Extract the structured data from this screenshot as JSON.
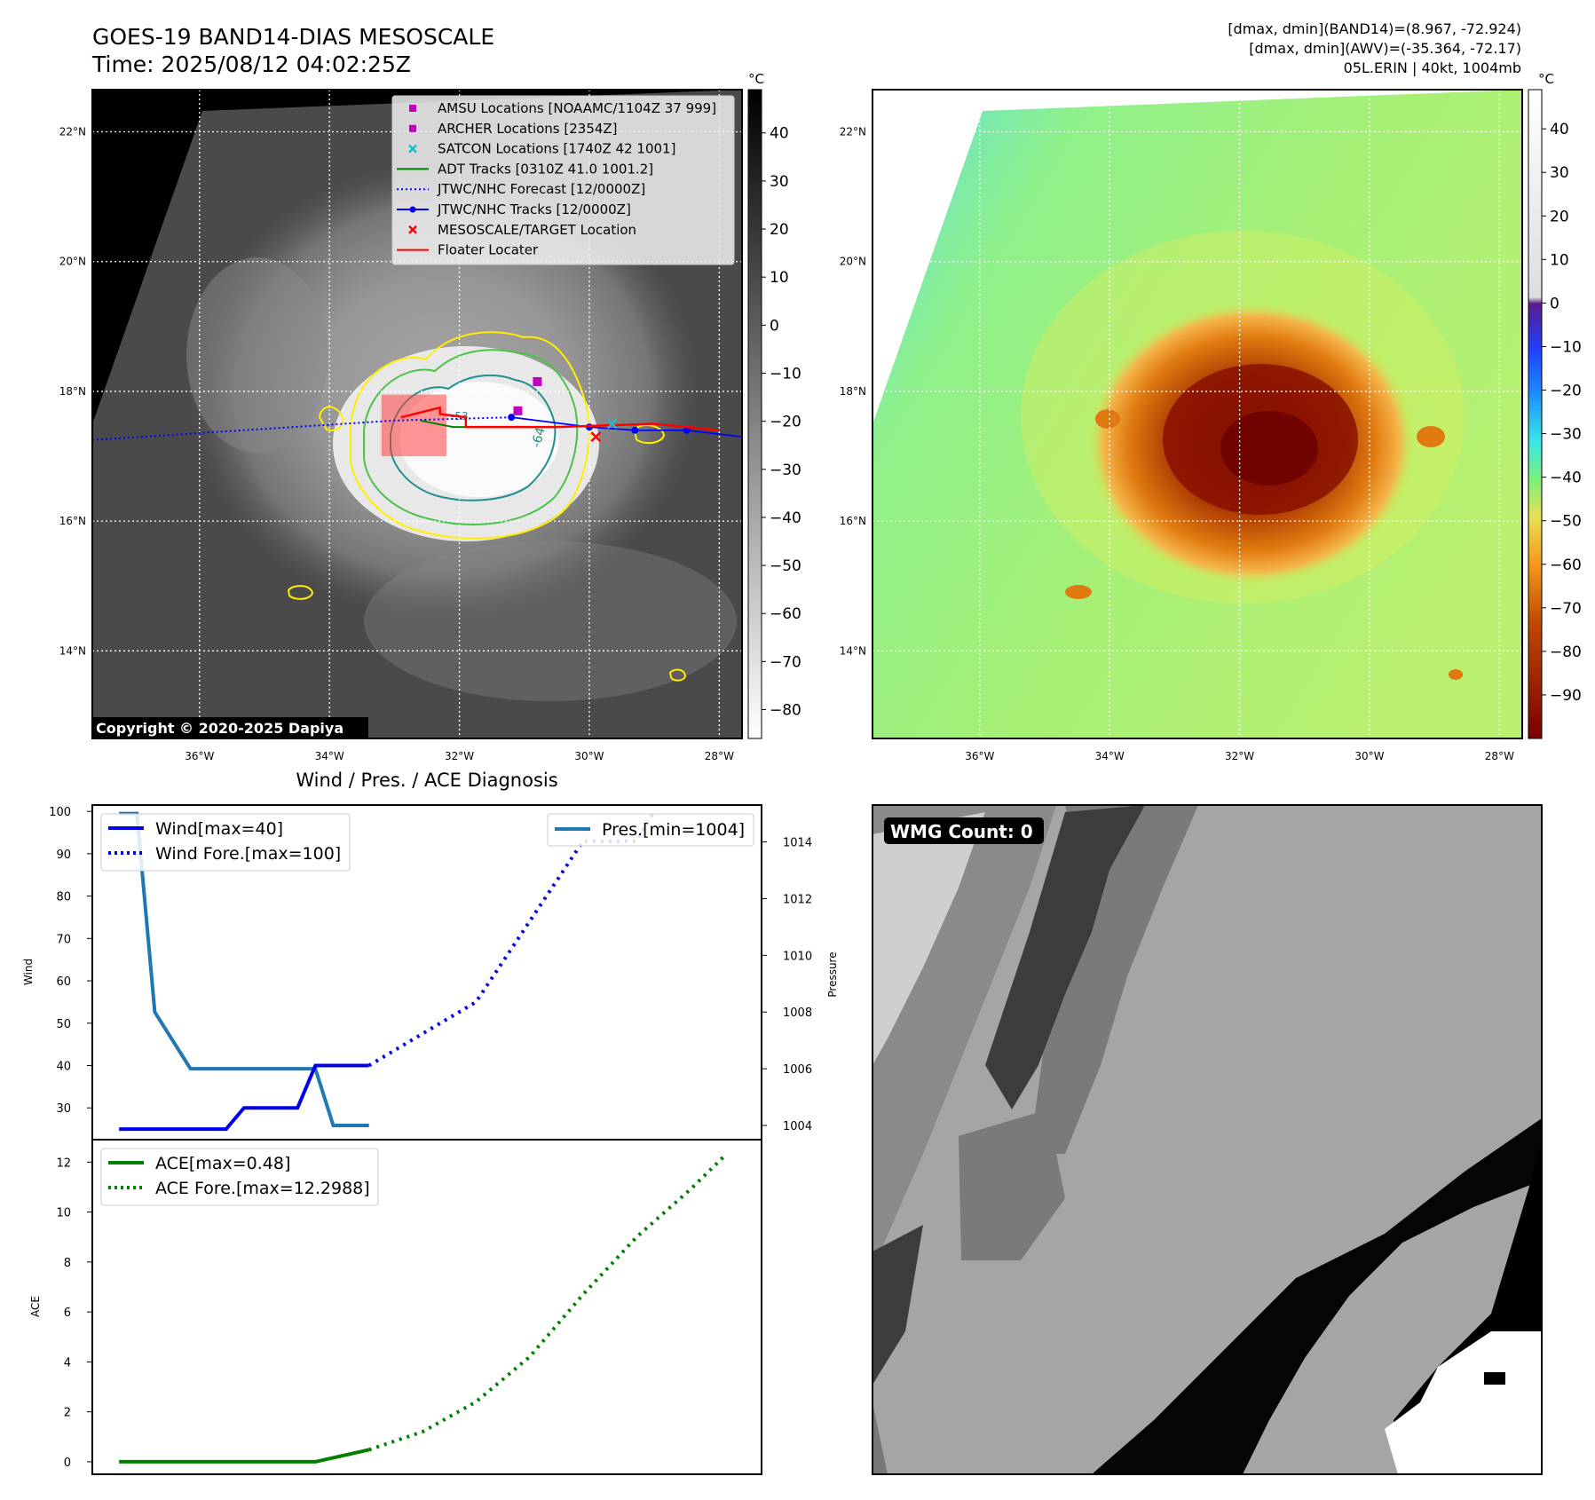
{
  "header": {
    "title_line1": "GOES-19 BAND14-DIAS MESOSCALE",
    "title_line2": "Time: 2025/08/12 04:02:25Z",
    "info_line1": "[dmax, dmin](BAND14)=(8.967, -72.924)",
    "info_line2": "[dmax, dmin](AWV)=(-35.364, -72.17)",
    "info_line3": "05L.ERIN | 40kt, 1004mb"
  },
  "map": {
    "lat_ticks": [
      "22°N",
      "20°N",
      "18°N",
      "16°N",
      "14°N"
    ],
    "lat_values": [
      22,
      20,
      18,
      16,
      14
    ],
    "lon_ticks": [
      "36°W",
      "34°W",
      "32°W",
      "30°W",
      "28°W"
    ],
    "lon_values": [
      -36,
      -34,
      -32,
      -30,
      -28
    ],
    "lon_range": [
      -37.65,
      -27.65
    ],
    "lat_range": [
      12.65,
      22.65
    ],
    "copyright": "Copyright © 2020-2025 Dapiya",
    "contour_label_1": "-64",
    "contour_label_2": "-53",
    "legend": [
      {
        "label": "AMSU Locations [NOAAMC/1104Z 37 999]",
        "color": "#bf00bf",
        "marker": "square"
      },
      {
        "label": "ARCHER Locations [2354Z]",
        "color": "#bf00bf",
        "marker": "square"
      },
      {
        "label": "SATCON Locations [1740Z 42 1001]",
        "color": "#17becf",
        "marker": "x"
      },
      {
        "label": "ADT Tracks [0310Z 41.0 1001.2]",
        "color": "#008000",
        "marker": "line"
      },
      {
        "label": "JTWC/NHC Forecast [12/0000Z]",
        "color": "#0000ff",
        "marker": "dotted"
      },
      {
        "label": "JTWC/NHC Tracks [12/0000Z]",
        "color": "#0000ff",
        "marker": "line-dot"
      },
      {
        "label": "MESOSCALE/TARGET Location",
        "color": "#ff0000",
        "marker": "x"
      },
      {
        "label": "Floater Locater",
        "color": "#ff0000",
        "marker": "line"
      }
    ]
  },
  "colorbar_gray": {
    "unit": "°C",
    "ticks": [
      "40",
      "30",
      "20",
      "10",
      "0",
      "−10",
      "−20",
      "−30",
      "−40",
      "−50",
      "−60",
      "−70",
      "−80"
    ],
    "values": [
      40,
      30,
      20,
      10,
      0,
      -10,
      -20,
      -30,
      -40,
      -50,
      -60,
      -70,
      -80
    ],
    "range": [
      -86,
      49
    ]
  },
  "colorbar_color": {
    "unit": "°C",
    "ticks": [
      "40",
      "30",
      "20",
      "10",
      "0",
      "−10",
      "−20",
      "−30",
      "−40",
      "−50",
      "−60",
      "−70",
      "−80",
      "−90"
    ],
    "values": [
      40,
      30,
      20,
      10,
      0,
      -10,
      -20,
      -30,
      -40,
      -50,
      -60,
      -70,
      -80,
      -90
    ],
    "range": [
      -100,
      49
    ]
  },
  "diagnosis": {
    "title": "Wind / Pres. / ACE Diagnosis",
    "wind_ylabel": "Wind",
    "pressure_ylabel": "Pressure",
    "ace_ylabel": "ACE",
    "legend_wind": "Wind[max=40]",
    "legend_wind_fore": "Wind Fore.[max=100]",
    "legend_pres": "Pres.[min=1004]",
    "legend_ace": "ACE[max=0.48]",
    "legend_ace_fore": "ACE Fore.[max=12.2988]",
    "colors": {
      "wind": "#0000ee",
      "pres": "#1f77b4",
      "ace": "#008000"
    }
  },
  "chart_data": [
    {
      "type": "line",
      "title": "Wind / Pres. / ACE Diagnosis",
      "ylabel": "Wind",
      "y2label": "Pressure",
      "xlim": [
        -1.5,
        36
      ],
      "ylim": [
        22.5,
        101.5
      ],
      "y_ticks": [
        30,
        40,
        50,
        60,
        70,
        80,
        90,
        100
      ],
      "y2lim": [
        1003.5,
        1015.3
      ],
      "y2_ticks": [
        1004,
        1006,
        1008,
        1010,
        1012,
        1014
      ],
      "series": [
        {
          "name": "Wind[max=40]",
          "x": [
            0,
            1,
            2,
            3,
            4,
            5,
            6,
            7,
            8,
            9,
            10,
            11,
            12,
            13,
            14
          ],
          "values": [
            25,
            25,
            25,
            25,
            25,
            25,
            25,
            30,
            30,
            30,
            30,
            40,
            40,
            40,
            40
          ]
        },
        {
          "name": "Wind Fore.[max=100]",
          "x": [
            14,
            20,
            26,
            29,
            30
          ],
          "values": [
            40,
            55,
            93,
            93,
            100
          ]
        },
        {
          "name": "Pres.[min=1004]",
          "x": [
            0,
            1,
            2,
            4,
            5,
            6,
            7,
            8,
            9,
            10,
            11,
            12,
            13,
            14
          ],
          "values": [
            1015,
            1015,
            1008,
            1006,
            1006,
            1006,
            1006,
            1006,
            1006,
            1006,
            1006,
            1004,
            1004,
            1004
          ]
        }
      ]
    },
    {
      "type": "line",
      "ylabel": "ACE",
      "xlim": [
        -1.5,
        36
      ],
      "ylim": [
        -0.5,
        12.9
      ],
      "y_ticks": [
        0,
        2,
        4,
        6,
        8,
        10,
        12
      ],
      "series": [
        {
          "name": "ACE[max=0.48]",
          "x": [
            0,
            11,
            14
          ],
          "values": [
            0,
            0,
            0.48
          ]
        },
        {
          "name": "ACE Fore.[max=12.2988]",
          "x": [
            14,
            17,
            20,
            23,
            26,
            29,
            32,
            34
          ],
          "values": [
            0.48,
            1.2,
            2.4,
            4.2,
            6.7,
            9.0,
            10.9,
            12.3
          ]
        }
      ]
    }
  ],
  "wmg": {
    "label": "WMG Count: 0"
  }
}
